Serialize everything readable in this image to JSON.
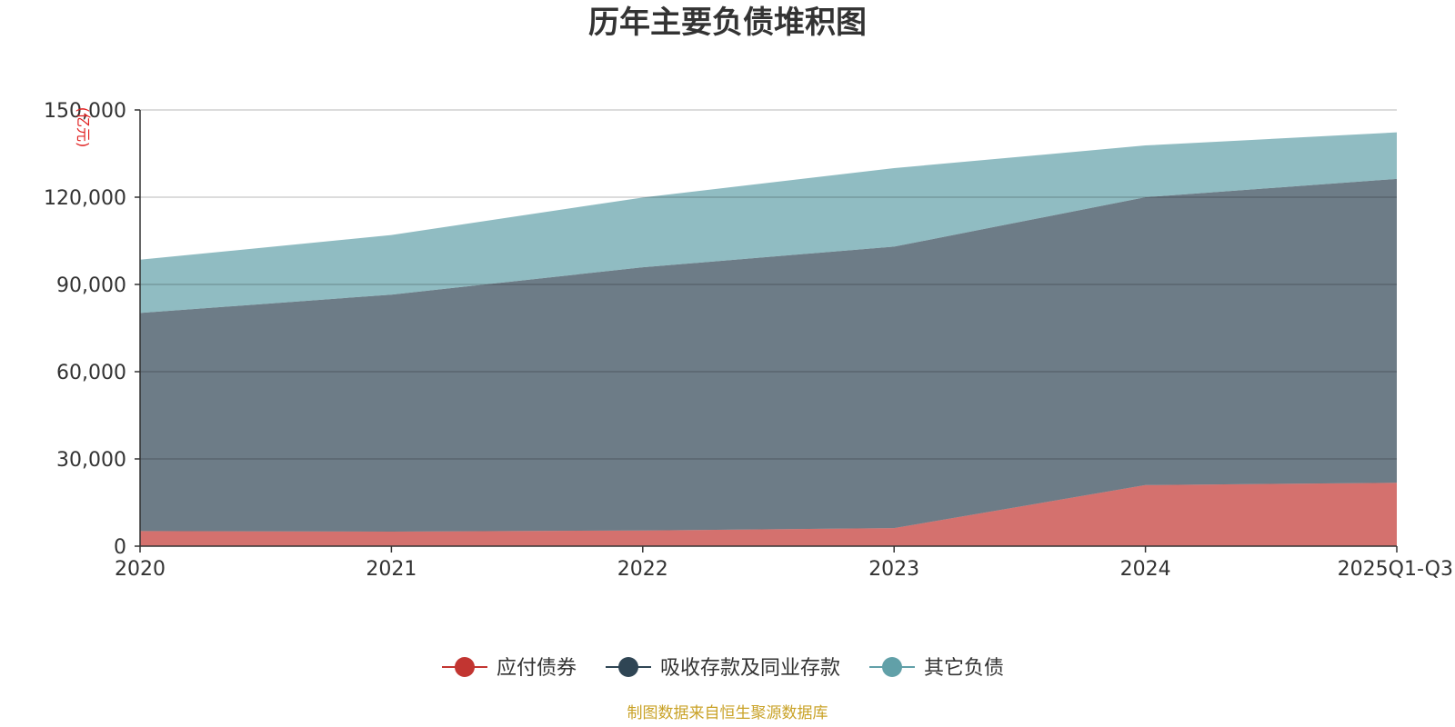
{
  "chart_data": {
    "type": "area",
    "stacked": true,
    "title": "历年主要负债堆积图",
    "unit_label": "亿元",
    "categories": [
      "2020",
      "2021",
      "2022",
      "2023",
      "2024",
      "2025Q1-Q3"
    ],
    "ylim": [
      0,
      150000
    ],
    "yticks": [
      0,
      30000,
      60000,
      90000,
      120000,
      150000
    ],
    "ytick_labels": [
      "0",
      "30,000",
      "60,000",
      "90,000",
      "120,000",
      "150,000"
    ],
    "grid": true,
    "legend_position": "bottom-center",
    "series": [
      {
        "name": "应付债券",
        "color": "#c23531",
        "values": [
          5200,
          5000,
          5400,
          6200,
          21000,
          21800
        ]
      },
      {
        "name": "吸收存款及同业存款",
        "color": "#2f4554",
        "values": [
          75000,
          81500,
          90500,
          96800,
          99000,
          104500
        ]
      },
      {
        "name": "其它负债",
        "color": "#61a0a8",
        "values": [
          18300,
          20500,
          24000,
          27000,
          17800,
          16000
        ]
      }
    ],
    "source": "制图数据来自恒生聚源数据库"
  }
}
